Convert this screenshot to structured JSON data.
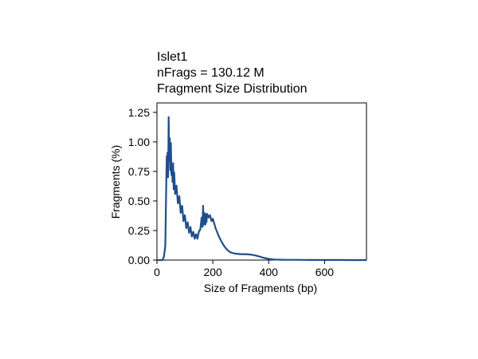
{
  "chart_data": {
    "type": "line",
    "title_lines": [
      "Islet1",
      "nFrags = 130.12 M",
      "Fragment Size Distribution"
    ],
    "xlabel": "Size of Fragments (bp)",
    "ylabel": "Fragments (%)",
    "xlim": [
      0,
      750
    ],
    "ylim": [
      0,
      1.33
    ],
    "xticks": [
      0,
      200,
      400,
      600
    ],
    "yticks": [
      0.0,
      0.25,
      0.5,
      0.75,
      1.0,
      1.25
    ],
    "ytick_labels": [
      "0.00",
      "0.25",
      "0.50",
      "0.75",
      "1.00",
      "1.25"
    ],
    "grid": false,
    "legend": "none",
    "series": [
      {
        "color": "#1f4e8c",
        "x": [
          0,
          20,
          25,
          30,
          33,
          35,
          37,
          38,
          40,
          41,
          42,
          44,
          46,
          48,
          49,
          50,
          52,
          54,
          56,
          58,
          60,
          62,
          65,
          70,
          75,
          80,
          85,
          90,
          95,
          100,
          105,
          110,
          115,
          120,
          125,
          130,
          135,
          140,
          145,
          150,
          155,
          160,
          163,
          165,
          167,
          170,
          173,
          175,
          177,
          180,
          185,
          190,
          195,
          200,
          205,
          210,
          220,
          230,
          240,
          250,
          260,
          270,
          280,
          300,
          320,
          340,
          360,
          380,
          400,
          420,
          450,
          500,
          550,
          600,
          650,
          700,
          750
        ],
        "values": [
          0.0,
          0.0,
          0.03,
          0.12,
          0.6,
          0.88,
          0.72,
          0.91,
          0.7,
          0.95,
          1.21,
          0.84,
          1.03,
          0.76,
          0.9,
          0.99,
          0.72,
          0.8,
          0.66,
          0.82,
          0.6,
          0.74,
          0.56,
          0.63,
          0.48,
          0.54,
          0.4,
          0.46,
          0.33,
          0.38,
          0.27,
          0.32,
          0.23,
          0.28,
          0.2,
          0.24,
          0.18,
          0.22,
          0.18,
          0.24,
          0.26,
          0.36,
          0.28,
          0.46,
          0.3,
          0.4,
          0.3,
          0.39,
          0.32,
          0.39,
          0.36,
          0.38,
          0.33,
          0.35,
          0.31,
          0.27,
          0.21,
          0.16,
          0.12,
          0.09,
          0.07,
          0.06,
          0.055,
          0.05,
          0.05,
          0.045,
          0.035,
          0.02,
          0.01,
          0.005,
          0.003,
          0.002,
          0.001,
          0.001,
          0.0005,
          0.0003,
          0.0002
        ]
      }
    ]
  }
}
